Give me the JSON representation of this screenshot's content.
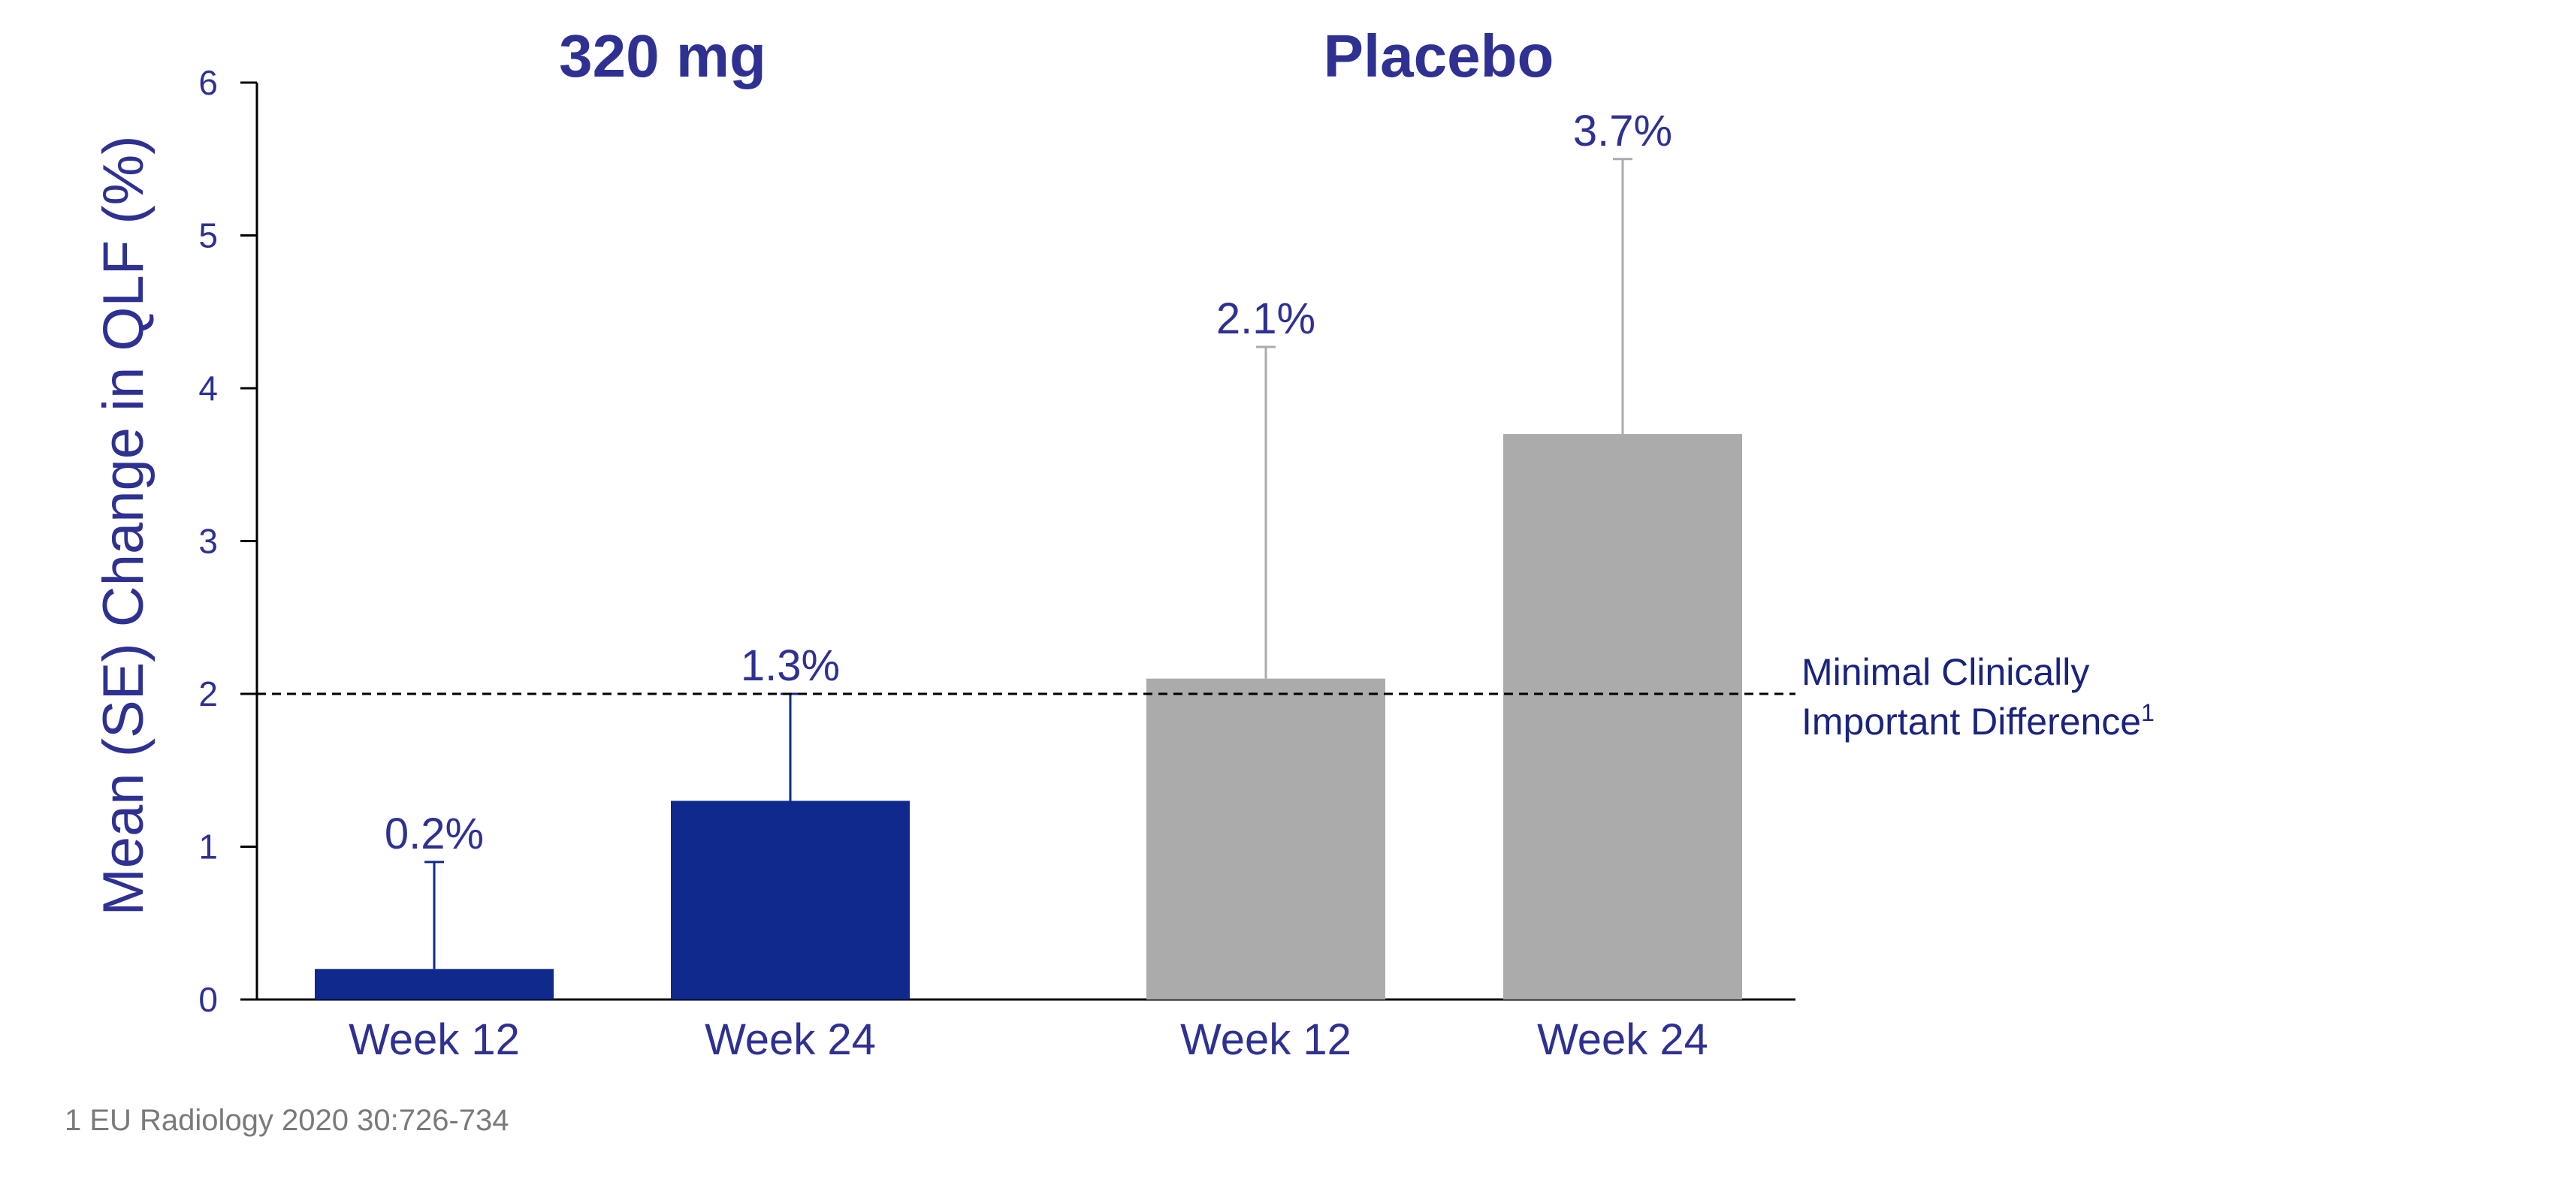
{
  "chart_data": {
    "type": "bar",
    "ylabel": "Mean (SE) Change in QLF (%)",
    "ylim": [
      0,
      6
    ],
    "yticks": [
      "0",
      "1",
      "2",
      "3",
      "4",
      "5",
      "6"
    ],
    "groups": [
      {
        "title": "320 mg",
        "color": "#0f2a8c",
        "error_color": "#0f2a8c",
        "bars": [
          {
            "category": "Week 12",
            "value": 0.2,
            "se": 0.7,
            "label": "0.2%"
          },
          {
            "category": "Week 24",
            "value": 1.3,
            "se": 0.7,
            "label": "1.3%"
          }
        ]
      },
      {
        "title": "Placebo",
        "color": "#ababab",
        "error_color": "#ababab",
        "bars": [
          {
            "category": "Week 12",
            "value": 2.1,
            "se": 2.17,
            "label": "2.1%"
          },
          {
            "category": "Week 24",
            "value": 3.7,
            "se": 1.8,
            "label": "3.7%"
          }
        ]
      }
    ],
    "reference_line": {
      "value": 2,
      "label_line1": "Minimal Clinically",
      "label_line2": "Important Difference",
      "superscript": "1"
    }
  },
  "footnote": "1 EU Radiology 2020 30:726-734",
  "colors": {
    "text_primary": "#2e3192",
    "axis": "#000000",
    "footnote": "#7a7a7a"
  }
}
